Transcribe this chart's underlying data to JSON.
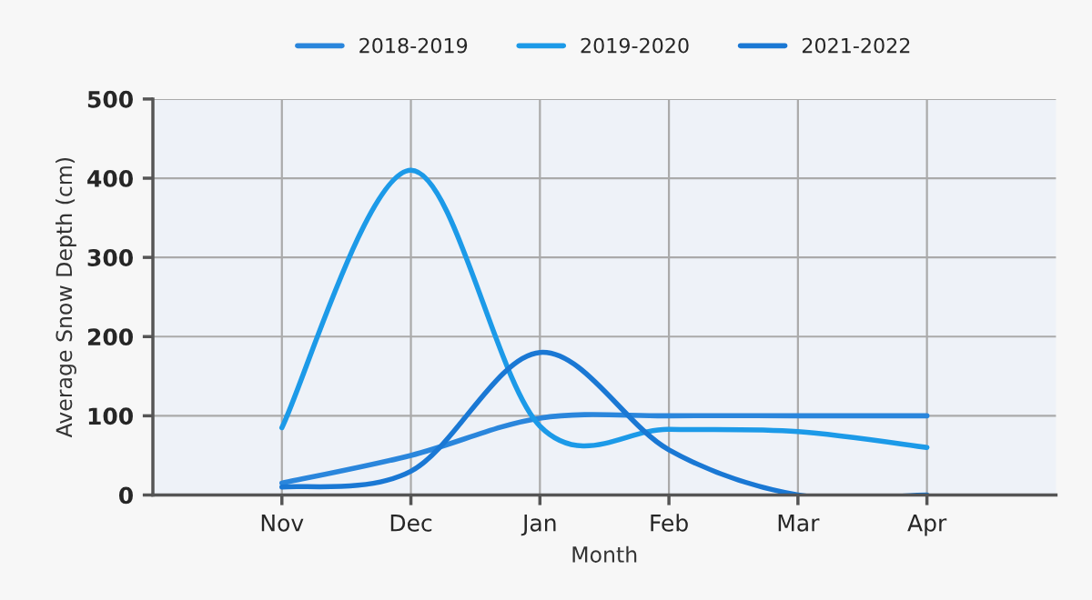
{
  "chart_data": {
    "type": "line",
    "xlabel": "Month",
    "ylabel": "Average Snow Depth (cm)",
    "categories": [
      "Nov",
      "Dec",
      "Jan",
      "Feb",
      "Mar",
      "Apr"
    ],
    "series": [
      {
        "name": "2018-2019",
        "color": "#2a86dc",
        "values": [
          15,
          50,
          97,
          100,
          100,
          100
        ]
      },
      {
        "name": "2019-2020",
        "color": "#1c9ae8",
        "values": [
          85,
          410,
          87,
          83,
          80,
          60
        ]
      },
      {
        "name": "2021-2022",
        "color": "#1a78d4",
        "values": [
          10,
          30,
          180,
          57,
          0,
          0
        ]
      }
    ],
    "ylim": [
      0,
      500
    ],
    "yticks": [
      0,
      100,
      200,
      300,
      400,
      500
    ],
    "grid": true,
    "legend": "top",
    "marker": "none",
    "line_style": "solid"
  }
}
